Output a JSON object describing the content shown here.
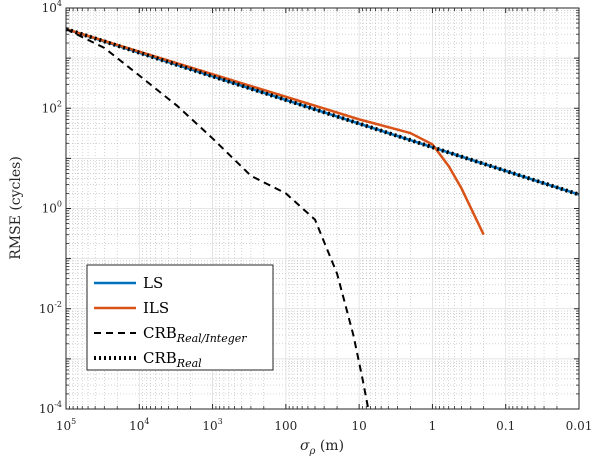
{
  "chart_data": {
    "type": "line",
    "xlabel": "σ",
    "xlabel_sub": "ρ",
    "xlabel_unit": " (m)",
    "ylabel": "RMSE (cycles)",
    "x_scale": "log",
    "y_scale": "log",
    "x_reversed": true,
    "xlim": [
      100000,
      0.01
    ],
    "ylim": [
      0.0001,
      10000
    ],
    "x_ticks": [
      {
        "value": 100000,
        "label": "10",
        "exp": "5"
      },
      {
        "value": 10000,
        "label": "10",
        "exp": "4"
      },
      {
        "value": 1000,
        "label": "10",
        "exp": "3"
      },
      {
        "value": 100,
        "label": "100",
        "exp": ""
      },
      {
        "value": 10,
        "label": "10",
        "exp": ""
      },
      {
        "value": 1,
        "label": "1",
        "exp": ""
      },
      {
        "value": 0.1,
        "label": "0.1",
        "exp": ""
      },
      {
        "value": 0.01,
        "label": "0.01",
        "exp": ""
      }
    ],
    "y_ticks": [
      {
        "value": 10000,
        "label": "10",
        "exp": "4"
      },
      {
        "value": 100,
        "label": "10",
        "exp": "2"
      },
      {
        "value": 1,
        "label": "10",
        "exp": "0"
      },
      {
        "value": 0.01,
        "label": "10",
        "exp": "-2"
      },
      {
        "value": 0.0001,
        "label": "10",
        "exp": "-4"
      }
    ],
    "grid": true,
    "minor_grid": true,
    "legend_position": "bottom-left",
    "series": [
      {
        "name": "LS",
        "name_sub": "",
        "color": "#0072BD",
        "style": "solid",
        "x": [
          100000,
          0.01
        ],
        "y": [
          3800,
          1.9
        ]
      },
      {
        "name": "ILS",
        "name_sub": "",
        "color": "#D95319",
        "style": "solid",
        "x": [
          100000,
          10,
          2,
          1,
          0.6,
          0.4,
          0.2
        ],
        "y": [
          3800,
          60,
          32,
          19,
          7,
          2.5,
          0.3
        ]
      },
      {
        "name": "CRB",
        "name_sub": "Real/Integer",
        "color": "#000000",
        "style": "dashed",
        "x": [
          100000,
          30000,
          10000,
          3000,
          1000,
          300,
          100,
          40,
          20,
          12,
          9,
          7.5
        ],
        "y": [
          3800,
          1600,
          450,
          110,
          25,
          4.5,
          2.0,
          0.6,
          0.05,
          0.003,
          0.0004,
          0.0001
        ]
      },
      {
        "name": "CRB",
        "name_sub": "Real",
        "color": "#000000",
        "style": "dotted",
        "x": [
          100000,
          0.01
        ],
        "y": [
          3800,
          1.9
        ]
      }
    ]
  }
}
